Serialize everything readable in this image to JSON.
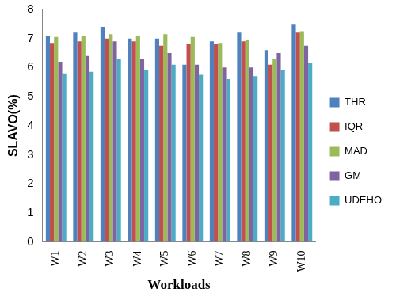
{
  "chart_data": {
    "type": "bar",
    "x_label": "Workloads",
    "y_label": "SLAVO(%)",
    "categories": [
      "W1",
      "W2",
      "W3",
      "W4",
      "W5",
      "W6",
      "W7",
      "W8",
      "W9",
      "W10"
    ],
    "series": [
      {
        "name": "THR",
        "color": "#4f81bd",
        "values": [
          7.1,
          7.2,
          7.4,
          7.0,
          7.0,
          6.1,
          6.9,
          7.2,
          6.6,
          7.5
        ]
      },
      {
        "name": "IQR",
        "color": "#c0504d",
        "values": [
          6.85,
          6.9,
          7.0,
          6.9,
          6.75,
          6.8,
          6.8,
          6.9,
          6.1,
          7.2
        ]
      },
      {
        "name": "MAD",
        "color": "#9bbb59",
        "values": [
          7.05,
          7.1,
          7.15,
          7.1,
          7.15,
          7.05,
          6.85,
          6.95,
          6.3,
          7.25
        ]
      },
      {
        "name": "GM",
        "color": "#8064a2",
        "values": [
          6.2,
          6.4,
          6.9,
          6.3,
          6.5,
          6.1,
          6.0,
          6.0,
          6.5,
          6.75
        ]
      },
      {
        "name": "UDEHO",
        "color": "#4bacc6",
        "values": [
          5.8,
          5.85,
          6.3,
          5.9,
          6.1,
          5.75,
          5.6,
          5.7,
          5.9,
          6.15
        ]
      }
    ],
    "ylim": [
      0,
      8
    ],
    "yticks": [
      0,
      1,
      2,
      3,
      4,
      5,
      6,
      7,
      8
    ],
    "grid": false,
    "legend": "right"
  }
}
